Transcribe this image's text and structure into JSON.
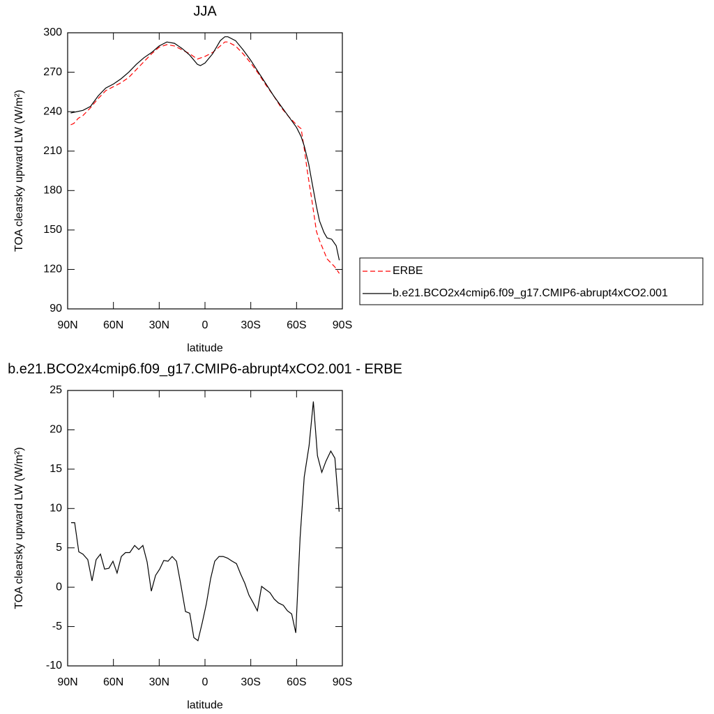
{
  "chart_data": [
    {
      "type": "line",
      "title": "JJA",
      "xlabel": "latitude",
      "ylabel": "TOA clearsky upward LW (W/m²)",
      "xlim": [
        90,
        -90
      ],
      "xticks": [
        {
          "value": 90,
          "label": "90N"
        },
        {
          "value": 60,
          "label": "60N"
        },
        {
          "value": 30,
          "label": "30N"
        },
        0,
        {
          "value": -30,
          "label": "30S"
        },
        {
          "value": -60,
          "label": "60S"
        },
        {
          "value": -90,
          "label": "90S"
        }
      ],
      "ylim": [
        90,
        300
      ],
      "yticks": [
        90,
        120,
        150,
        180,
        210,
        240,
        270,
        300
      ],
      "grid": false,
      "series": [
        {
          "name": "ERBE",
          "color": "#ff0000",
          "dash": true,
          "x": [
            88,
            86,
            83,
            80,
            75,
            70,
            65,
            60,
            55,
            50,
            45,
            40,
            35,
            30,
            25,
            20,
            15,
            10,
            5,
            0,
            -5,
            -10,
            -13,
            -15,
            -20,
            -25,
            -30,
            -35,
            -40,
            -45,
            -50,
            -55,
            -60,
            -63,
            -65,
            -67,
            -70,
            -73,
            -75,
            -80,
            -85,
            -88
          ],
          "values": [
            230,
            231,
            235,
            237,
            243,
            250,
            256,
            259,
            262,
            266,
            272,
            278,
            284,
            289,
            291,
            290,
            287,
            284,
            280,
            282,
            285,
            290,
            293,
            293,
            290,
            284,
            277,
            269,
            260,
            252,
            243,
            236,
            230,
            227,
            212,
            195,
            173,
            149,
            142,
            128,
            122,
            117
          ]
        },
        {
          "name": "b.e21.BCO2x4cmip6.f09_g17.CMIP6-abrupt4xCO2.001",
          "color": "#000000",
          "dash": false,
          "x": [
            88,
            80,
            75,
            70,
            65,
            60,
            55,
            50,
            45,
            40,
            35,
            30,
            25,
            20,
            15,
            10,
            5,
            3,
            0,
            -5,
            -10,
            -13,
            -15,
            -20,
            -25,
            -30,
            -35,
            -40,
            -45,
            -50,
            -55,
            -60,
            -63,
            -65,
            -68,
            -70,
            -73,
            -75,
            -78,
            -80,
            -83,
            -86,
            -88
          ],
          "values": [
            239,
            241,
            244,
            252,
            258,
            261,
            265,
            270,
            276,
            281,
            285,
            290,
            293,
            292,
            288,
            283,
            276,
            275,
            277,
            284,
            294,
            297,
            297,
            294,
            287,
            279,
            270,
            261,
            252,
            244,
            236,
            228,
            221,
            214,
            200,
            187,
            168,
            157,
            148,
            144,
            143,
            138,
            127
          ]
        }
      ]
    },
    {
      "type": "line",
      "title": "b.e21.BCO2x4cmip6.f09_g17.CMIP6-abrupt4xCO2.001 - ERBE",
      "xlabel": "latitude",
      "ylabel": "TOA clearsky upward LW (W/m²)",
      "xlim": [
        90,
        -90
      ],
      "xticks": [
        {
          "value": 90,
          "label": "90N"
        },
        {
          "value": 60,
          "label": "60N"
        },
        {
          "value": 30,
          "label": "30N"
        },
        0,
        {
          "value": -30,
          "label": "30S"
        },
        {
          "value": -60,
          "label": "60S"
        },
        {
          "value": -90,
          "label": "90S"
        }
      ],
      "ylim": [
        -10,
        25
      ],
      "yticks": [
        -10,
        -5,
        0,
        5,
        10,
        15,
        20,
        25
      ],
      "grid": false,
      "series": [
        {
          "color": "#000000",
          "dash": false,
          "x": [
            87.7,
            85.4,
            82.7,
            80,
            76.8,
            74,
            71.3,
            68.5,
            65.8,
            63,
            60.3,
            57.6,
            54.8,
            52.1,
            49.3,
            46.1,
            43.4,
            40.7,
            37.9,
            35.2,
            32.4,
            29.7,
            27,
            24.2,
            21.5,
            18.7,
            16,
            12.8,
            10,
            7.3,
            4.6,
            1.8,
            -0.9,
            -3.7,
            -6.4,
            -9.2,
            -11.9,
            -14.7,
            -17.8,
            -20.6,
            -23.3,
            -26.1,
            -28.8,
            -31.6,
            -34.3,
            -37.1,
            -39.8,
            -42.6,
            -45.3,
            -48.1,
            -51.3,
            -54,
            -56.8,
            -59.5,
            -62.3,
            -65,
            -68.2,
            -71,
            -73.7,
            -76.5,
            -79.2,
            -82.4,
            -85.1,
            -87.9
          ],
          "values": [
            8.2,
            8.2,
            4.5,
            4.2,
            3.5,
            0.8,
            3.5,
            4.2,
            2.3,
            2.4,
            3.3,
            1.8,
            3.9,
            4.4,
            4.4,
            5.3,
            4.8,
            5.3,
            3.2,
            -0.5,
            1.5,
            2.3,
            3.4,
            3.3,
            3.9,
            3.3,
            0.5,
            -3.1,
            -3.3,
            -6.4,
            -6.8,
            -4.5,
            -2.1,
            1.1,
            3.3,
            3.9,
            3.9,
            3.7,
            3.3,
            3.0,
            1.7,
            0.5,
            -1.0,
            -2.0,
            -3.0,
            0.1,
            -0.3,
            -0.7,
            -1.5,
            -2.0,
            -2.3,
            -3.0,
            -3.4,
            -5.8,
            6.3,
            14.0,
            18.0,
            23.6,
            16.7,
            14.6,
            16.0,
            17.3,
            16.4,
            9.6
          ]
        }
      ]
    }
  ]
}
